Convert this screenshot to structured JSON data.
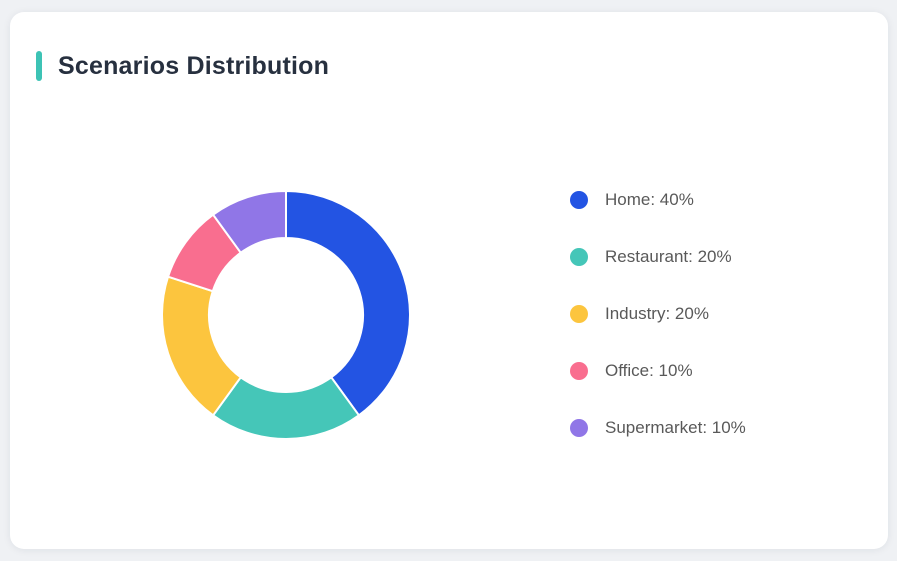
{
  "page": {
    "background": "#eff1f4"
  },
  "card": {
    "title": "Scenarios Distribution",
    "accent_color": "#3dc3b5",
    "background": "#ffffff"
  },
  "chart_data": {
    "type": "pie",
    "variant": "donut",
    "title": "Scenarios Distribution",
    "unit": "%",
    "start_angle_deg": 0,
    "direction": "clockwise",
    "inner_radius_ratio": 0.62,
    "legend_position": "right",
    "series": [
      {
        "name": "Home",
        "value": 40,
        "color": "#2354e3",
        "label": "Home: 40%"
      },
      {
        "name": "Restaurant",
        "value": 20,
        "color": "#45c6b8",
        "label": "Restaurant: 20%"
      },
      {
        "name": "Industry",
        "value": 20,
        "color": "#fcc53e",
        "label": "Industry: 20%"
      },
      {
        "name": "Office",
        "value": 10,
        "color": "#f96e8f",
        "label": "Office: 10%"
      },
      {
        "name": "Supermarket",
        "value": 10,
        "color": "#9076e7",
        "label": "Supermarket: 10%"
      }
    ]
  },
  "theme": {
    "title_color": "#27303f",
    "legend_text_color": "#595959",
    "segment_border_color": "#ffffff"
  }
}
